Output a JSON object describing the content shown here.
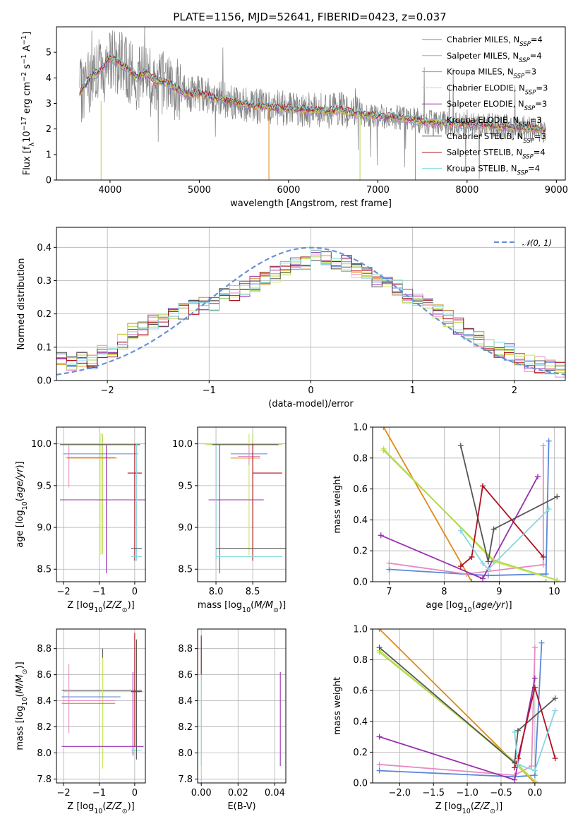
{
  "figure": {
    "title": "PLATE=1156, MJD=52641, FIBERID=0423, z=0.037"
  },
  "colors": {
    "Chabrier MILES": "#5b87d9",
    "Salpeter MILES": "#e78ac3",
    "Kroupa MILES": "#e08a18",
    "Chabrier ELODIE": "#c8e85a",
    "Salpeter ELODIE": "#9a2fb0",
    "Kroupa ELODIE": "#b1d84f",
    "Chabrier STELIB": "#555555",
    "Salpeter STELIB": "#b01020",
    "Kroupa STELIB": "#84d8e0",
    "data": "#808080",
    "normal": "#6a8fd8",
    "grid": "#b0b0b0"
  },
  "chart_data": [
    {
      "type": "line",
      "title": "PLATE=1156, MJD=52641, FIBERID=0423, z=0.037",
      "xlabel": "wavelength [Angstrom, rest frame]",
      "ylabel": "Flux [f_λ 10^-17 erg cm^-2 s^-1 A^-1]",
      "xlim": [
        3400,
        9100
      ],
      "ylim": [
        0,
        6
      ],
      "xticks": [
        4000,
        5000,
        6000,
        7000,
        8000,
        9000
      ],
      "yticks": [
        0,
        1,
        2,
        3,
        4,
        5
      ],
      "grid": false,
      "legend_position": "top-right",
      "continuum": {
        "x": [
          3650,
          3700,
          3800,
          3900,
          4000,
          4100,
          4200,
          4300,
          4400,
          4500,
          4600,
          4700,
          4800,
          4900,
          5000,
          5200,
          5400,
          5600,
          5800,
          6000,
          6200,
          6400,
          6600,
          6800,
          7000,
          7200,
          7400,
          7600,
          7800,
          8000,
          8200,
          8400,
          8600,
          8800,
          8900
        ],
        "y": [
          3.3,
          3.6,
          4.1,
          4.3,
          4.8,
          4.6,
          4.35,
          4.0,
          4.2,
          3.9,
          3.85,
          3.7,
          3.45,
          3.35,
          3.4,
          3.2,
          3.05,
          2.9,
          2.85,
          2.8,
          2.75,
          2.7,
          2.75,
          2.55,
          2.5,
          2.45,
          2.35,
          2.25,
          2.2,
          2.2,
          2.15,
          2.1,
          2.05,
          2.0,
          1.9
        ]
      },
      "legend": [
        {
          "label": "Chabrier MILES, N",
          "sub": "SSP",
          "suffix": "=4"
        },
        {
          "label": "Salpeter MILES, N",
          "sub": "SSP",
          "suffix": "=4"
        },
        {
          "label": "Kroupa MILES, N",
          "sub": "SSP",
          "suffix": "=3"
        },
        {
          "label": "Chabrier ELODIE, N",
          "sub": "SSP",
          "suffix": "=3"
        },
        {
          "label": "Salpeter ELODIE, N",
          "sub": "SSP",
          "suffix": "=3"
        },
        {
          "label": "Kroupa ELODIE, N",
          "sub": "SSP",
          "suffix": "=3"
        },
        {
          "label": "Chabrier STELIB, N",
          "sub": "SSP",
          "suffix": "=3"
        },
        {
          "label": "Salpeter STELIB, N",
          "sub": "SSP",
          "suffix": "=4"
        },
        {
          "label": "Kroupa STELIB, N",
          "sub": "SSP",
          "suffix": "=4"
        }
      ]
    },
    {
      "type": "line",
      "xlabel": "(data-model)/error",
      "ylabel": "Normed distribution",
      "xlim": [
        -2.5,
        2.5
      ],
      "ylim": [
        0,
        0.46
      ],
      "xticks": [
        -2,
        -1,
        0,
        1,
        2
      ],
      "yticks": [
        0.0,
        0.1,
        0.2,
        0.3,
        0.4
      ],
      "grid": true,
      "legend_position": "top-right",
      "legend_label": "𝒩(0, 1)",
      "hist_bins": [
        -2.5,
        2.5,
        0.1
      ],
      "hist_mean": [
        0.06,
        0.055,
        0.068,
        0.059,
        0.082,
        0.094,
        0.118,
        0.148,
        0.158,
        0.172,
        0.184,
        0.198,
        0.208,
        0.222,
        0.226,
        0.234,
        0.252,
        0.262,
        0.276,
        0.288,
        0.302,
        0.318,
        0.338,
        0.35,
        0.358,
        0.378,
        0.372,
        0.354,
        0.352,
        0.334,
        0.318,
        0.304,
        0.288,
        0.278,
        0.256,
        0.238,
        0.224,
        0.21,
        0.186,
        0.164,
        0.148,
        0.128,
        0.112,
        0.092,
        0.086,
        0.066,
        0.052,
        0.046,
        0.038,
        0.034
      ]
    },
    {
      "type": "scatter",
      "xlabel": "Z [log10(Z/Z⊙)]",
      "ylabel": "age [log10(age/yr)]",
      "xlim": [
        -2.2,
        0.3
      ],
      "ylim": [
        8.35,
        10.2
      ],
      "xticks": [
        -2,
        -1,
        0
      ],
      "yticks": [
        8.5,
        9.0,
        9.5,
        10.0
      ],
      "grid": true
    },
    {
      "type": "scatter",
      "xlabel": "mass [log10(M/M⊙)]",
      "ylabel": "",
      "xlim": [
        7.75,
        8.95
      ],
      "ylim": [
        8.35,
        10.2
      ],
      "xticks": [
        8.0,
        8.5
      ],
      "yticks": [
        8.5,
        9.0,
        9.5,
        10.0
      ],
      "grid": true
    },
    {
      "type": "line",
      "xlabel": "age [log10(age/yr)]",
      "ylabel": "mass weight",
      "xlim": [
        6.7,
        10.2
      ],
      "ylim": [
        0,
        1
      ],
      "xticks": [
        7,
        8,
        9,
        10
      ],
      "yticks": [
        0.0,
        0.2,
        0.4,
        0.6,
        0.8,
        1.0
      ],
      "grid": true
    },
    {
      "type": "scatter",
      "xlabel": "Z [log10(Z/Z⊙)]",
      "ylabel": "mass [log10(M/M⊙)]",
      "xlim": [
        -2.2,
        0.3
      ],
      "ylim": [
        7.77,
        8.95
      ],
      "xticks": [
        -2,
        -1,
        0
      ],
      "yticks": [
        7.8,
        8.0,
        8.2,
        8.4,
        8.6,
        8.8
      ],
      "grid": true
    },
    {
      "type": "scatter",
      "xlabel": "E(B-V)",
      "ylabel": "",
      "xlim": [
        -0.002,
        0.046
      ],
      "ylim": [
        7.77,
        8.95
      ],
      "xticks": [
        0.0,
        0.02,
        0.04
      ],
      "yticks": [
        7.8,
        8.0,
        8.2,
        8.4,
        8.6,
        8.8
      ],
      "grid": true
    },
    {
      "type": "line",
      "xlabel": "Z [log10(Z/Z⊙)]",
      "ylabel": "mass weight",
      "xlim": [
        -2.4,
        0.45
      ],
      "ylim": [
        0,
        1
      ],
      "xticks": [
        -2.0,
        -1.5,
        -1.0,
        -0.5,
        0.0
      ],
      "yticks": [
        0.0,
        0.2,
        0.4,
        0.6,
        0.8,
        1.0
      ],
      "grid": true
    }
  ],
  "models": [
    {
      "name": "Chabrier MILES",
      "Z": [
        -2.3,
        -0.3,
        0.0,
        0.1
      ],
      "age": [
        7.0,
        8.8,
        9.85,
        9.9
      ],
      "w": [
        0.08,
        0.04,
        0.05,
        0.91
      ]
    },
    {
      "name": "Salpeter MILES",
      "Z": [
        -2.3,
        -0.3,
        -0.05,
        0.0
      ],
      "age": [
        7.0,
        8.4,
        9.8,
        9.8
      ],
      "w": [
        0.12,
        0.05,
        0.11,
        0.88
      ]
    },
    {
      "name": "Kroupa MILES",
      "Z": [
        -2.3,
        0.0,
        0.0
      ],
      "age": [
        6.9,
        8.5,
        9.85
      ],
      "w": [
        1.0,
        0.0,
        0.0
      ]
    },
    {
      "name": "Chabrier ELODIE",
      "Z": [
        -2.3,
        -0.3,
        0.0
      ],
      "age": [
        6.9,
        8.9,
        10.05
      ],
      "w": [
        0.86,
        0.13,
        0.01
      ]
    },
    {
      "name": "Salpeter ELODIE",
      "Z": [
        -2.3,
        -0.3,
        0.0
      ],
      "age": [
        6.85,
        8.7,
        9.7
      ],
      "w": [
        0.3,
        0.02,
        0.68
      ]
    },
    {
      "name": "Kroupa ELODIE",
      "Z": [
        -2.3,
        -0.3,
        0.0
      ],
      "age": [
        6.9,
        8.9,
        10.05
      ],
      "w": [
        0.85,
        0.14,
        0.01
      ]
    },
    {
      "name": "Chabrier STELIB",
      "Z": [
        -2.3,
        -0.3,
        -0.25,
        0.3
      ],
      "age": [
        8.3,
        8.8,
        8.9,
        10.05
      ],
      "w": [
        0.88,
        0.13,
        0.34,
        0.55
      ]
    },
    {
      "name": "Salpeter STELIB",
      "Z": [
        -0.3,
        -0.25,
        0.0,
        0.3
      ],
      "age": [
        8.3,
        8.5,
        8.7,
        9.8
      ],
      "w": [
        0.1,
        0.16,
        0.62,
        0.16
      ]
    },
    {
      "name": "Kroupa STELIB",
      "Z": [
        -0.3,
        -0.25,
        0.0,
        0.3
      ],
      "age": [
        8.3,
        8.7,
        8.8,
        9.9
      ],
      "w": [
        0.33,
        0.12,
        0.08,
        0.47
      ]
    }
  ],
  "errbars_age_Z": [
    {
      "c": "Chabrier ELODIE",
      "x": -0.95,
      "y": 9.99,
      "xe": [
        -2.05,
        0.05
      ],
      "ye": [
        8.67,
        10.13
      ]
    },
    {
      "c": "Kroupa ELODIE",
      "x": -0.9,
      "y": 9.99,
      "xe": [
        -2.0,
        0.1
      ],
      "ye": [
        8.68,
        10.12
      ]
    },
    {
      "c": "Chabrier MILES",
      "x": -0.3,
      "y": 9.88,
      "xe": [
        -2.0,
        0.1
      ],
      "ye": [
        9.88,
        9.88
      ]
    },
    {
      "c": "Salpeter MILES",
      "x": -1.85,
      "y": 9.84,
      "xe": [
        -1.95,
        -0.55
      ],
      "ye": [
        9.48,
        9.98
      ]
    },
    {
      "c": "Kroupa MILES",
      "x": -1.5,
      "y": 9.83,
      "xe": [
        -1.9,
        -0.5
      ],
      "ye": [
        9.83,
        9.83
      ]
    },
    {
      "c": "Chabrier STELIB",
      "x": -0.05,
      "y": 9.99,
      "xe": [
        -2.1,
        0.15
      ],
      "ye": [
        9.99,
        9.99
      ]
    },
    {
      "c": "Salpeter STELIB",
      "x": 0.0,
      "y": 9.65,
      "xe": [
        -0.2,
        0.2
      ],
      "ye": [
        8.6,
        10.0
      ]
    },
    {
      "c": "Salpeter ELODIE",
      "x": -0.8,
      "y": 9.33,
      "xe": [
        -2.1,
        0.3
      ],
      "ye": [
        8.45,
        9.99
      ]
    },
    {
      "c": "Kroupa STELIB",
      "x": 0.05,
      "y": 8.65,
      "xe": [
        -0.1,
        0.2
      ],
      "ye": [
        8.6,
        10.0
      ]
    },
    {
      "c": "Chabrier STELIB",
      "x": 0.05,
      "y": 8.75,
      "xe": [
        -0.1,
        0.2
      ],
      "ye": [
        8.75,
        8.75
      ]
    }
  ],
  "errbars_age_mass": [
    {
      "c": "Chabrier ELODIE",
      "x": 8.45,
      "y": 9.99,
      "xe": [
        7.85,
        8.85
      ],
      "ye": [
        8.67,
        10.12
      ]
    },
    {
      "c": "Kroupa ELODIE",
      "x": 8.5,
      "y": 9.99,
      "xe": [
        7.9,
        8.9
      ],
      "ye": [
        8.68,
        10.13
      ]
    },
    {
      "c": "Chabrier MILES",
      "x": 8.55,
      "y": 9.88,
      "xe": [
        8.2,
        8.7
      ],
      "ye": [
        9.88,
        9.88
      ]
    },
    {
      "c": "Salpeter MILES",
      "x": 8.45,
      "y": 9.85,
      "xe": [
        8.3,
        8.6
      ],
      "ye": [
        9.75,
        9.98
      ]
    },
    {
      "c": "Kroupa MILES",
      "x": 8.45,
      "y": 9.83,
      "xe": [
        8.2,
        8.6
      ],
      "ye": [
        9.83,
        9.83
      ]
    },
    {
      "c": "Chabrier STELIB",
      "x": 8.0,
      "y": 9.99,
      "xe": [
        7.95,
        8.85
      ],
      "ye": [
        8.62,
        10.0
      ]
    },
    {
      "c": "Salpeter STELIB",
      "x": 8.5,
      "y": 9.65,
      "xe": [
        8.5,
        8.9
      ],
      "ye": [
        8.6,
        10.0
      ]
    },
    {
      "c": "Salpeter ELODIE",
      "x": 8.05,
      "y": 9.33,
      "xe": [
        7.9,
        8.65
      ],
      "ye": [
        8.45,
        9.99
      ]
    },
    {
      "c": "Kroupa STELIB",
      "x": 8.0,
      "y": 8.65,
      "xe": [
        8.0,
        8.9
      ],
      "ye": [
        8.62,
        9.99
      ]
    },
    {
      "c": "Chabrier STELIB",
      "x": 8.5,
      "y": 8.75,
      "xe": [
        8.0,
        8.95
      ],
      "ye": [
        8.75,
        8.75
      ]
    }
  ],
  "errbars_mass_Z": [
    {
      "c": "Chabrier STELIB",
      "x": -0.9,
      "y": 8.48,
      "xe": [
        -2.05,
        0.2
      ],
      "ye": [
        7.95,
        8.8
      ]
    },
    {
      "c": "Chabrier ELODIE",
      "x": -0.9,
      "y": 8.47,
      "xe": [
        -2.0,
        0.25
      ],
      "ye": [
        7.88,
        8.73
      ]
    },
    {
      "c": "Chabrier MILES",
      "x": -0.8,
      "y": 8.43,
      "xe": [
        -2.05,
        -0.4
      ],
      "ye": [
        8.43,
        8.43
      ]
    },
    {
      "c": "Salpeter MILES",
      "x": -1.85,
      "y": 8.4,
      "xe": [
        -2.05,
        -0.55
      ],
      "ye": [
        8.15,
        8.68
      ]
    },
    {
      "c": "Kroupa MILES",
      "x": -1.5,
      "y": 8.38,
      "xe": [
        -2.05,
        -0.55
      ],
      "ye": [
        8.38,
        8.38
      ]
    },
    {
      "c": "Salpeter ELODIE",
      "x": -0.05,
      "y": 8.05,
      "xe": [
        -2.05,
        0.25
      ],
      "ye": [
        7.98,
        8.62
      ]
    },
    {
      "c": "Salpeter STELIB",
      "x": 0.0,
      "y": 8.47,
      "xe": [
        -0.1,
        0.15
      ],
      "ye": [
        8.05,
        8.92
      ]
    },
    {
      "c": "Kroupa STELIB",
      "x": 0.05,
      "y": 8.02,
      "xe": [
        -0.1,
        0.2
      ],
      "ye": [
        7.98,
        8.46
      ]
    },
    {
      "c": "Chabrier STELIB",
      "x": 0.05,
      "y": 8.47,
      "xe": [
        -0.1,
        0.2
      ],
      "ye": [
        7.95,
        8.87
      ]
    }
  ],
  "errbars_mass_ebv": [
    {
      "c": "Chabrier ELODIE",
      "x": 0.0,
      "y": 8.1,
      "xe": [
        0.0,
        0.0
      ],
      "ye": [
        7.85,
        8.8
      ]
    },
    {
      "c": "Kroupa STELIB",
      "x": 0.0,
      "y": 8.3,
      "xe": [
        0.0,
        0.0
      ],
      "ye": [
        7.9,
        8.85
      ]
    },
    {
      "c": "Salpeter STELIB",
      "x": 0.0,
      "y": 8.75,
      "xe": [
        0.0,
        0.0
      ],
      "ye": [
        8.6,
        8.9
      ]
    },
    {
      "c": "Salpeter ELODIE",
      "x": 0.043,
      "y": 8.2,
      "xe": [
        0.043,
        0.043
      ],
      "ye": [
        7.9,
        8.62
      ]
    }
  ]
}
